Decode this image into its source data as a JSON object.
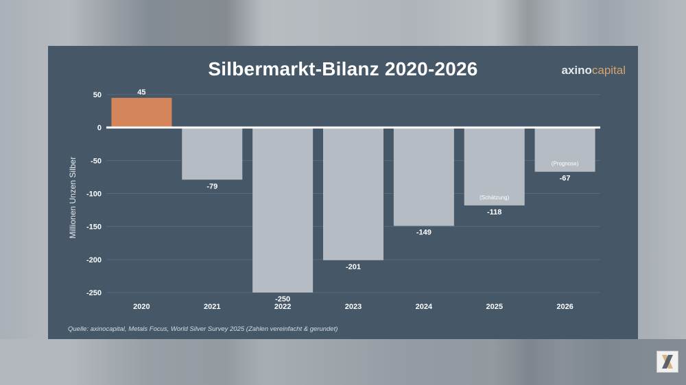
{
  "title": "Silbermarkt-Bilanz 2020-2026",
  "logo": {
    "part1": "axino",
    "part2": "capital"
  },
  "source": "Quelle: axinocapital, Metals Focus, World Silver Survey 2025 (Zahlen vereinfacht & gerundet)",
  "colors": {
    "panel": "#465768",
    "positive_bar": "#d4865a",
    "negative_bar": "#b6bcc3",
    "text": "#ffffff"
  },
  "chart_data": {
    "type": "bar",
    "title": "Silbermarkt-Bilanz 2020-2026",
    "ylabel": "Millionen Unzen Silber",
    "xlabel": "",
    "ylim": [
      -250,
      50
    ],
    "yticks": [
      50,
      0,
      -50,
      -100,
      -150,
      -200,
      -250
    ],
    "grid": true,
    "categories": [
      "2020",
      "2021",
      "2022",
      "2023",
      "2024",
      "2025",
      "2026"
    ],
    "values": [
      45,
      -79,
      -250,
      -201,
      -149,
      -118,
      -67
    ],
    "value_labels": [
      "45",
      "-79",
      "-250",
      "-201",
      "-149",
      "-118",
      "-67"
    ],
    "annotations": [
      {
        "category": "2025",
        "text": "(Schätzung)"
      },
      {
        "category": "2026",
        "text": "(Prognose)"
      }
    ]
  }
}
